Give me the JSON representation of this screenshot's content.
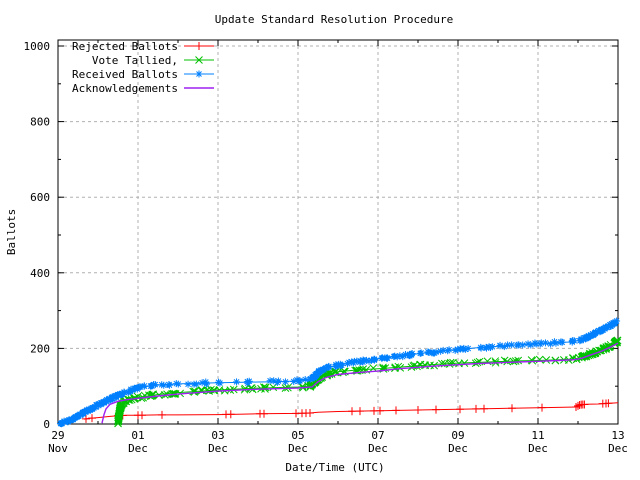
{
  "chart_data": {
    "type": "line",
    "title": "Update Standard Resolution Procedure",
    "xlabel": "Date/Time (UTC)",
    "ylabel": "Ballots",
    "x_unit": "days since 29 Nov 00:00 UTC",
    "xlim_days": [
      0,
      14
    ],
    "ylim": [
      0,
      1016
    ],
    "y_ticks": [
      0,
      200,
      400,
      600,
      800,
      1000
    ],
    "y_minor_ticks": [
      100,
      300,
      500,
      700,
      900
    ],
    "x_ticks": [
      {
        "day": 0,
        "line1": "29",
        "line2": "Nov"
      },
      {
        "day": 2,
        "line1": "01",
        "line2": "Dec"
      },
      {
        "day": 4,
        "line1": "03",
        "line2": "Dec"
      },
      {
        "day": 6,
        "line1": "05",
        "line2": "Dec"
      },
      {
        "day": 8,
        "line1": "07",
        "line2": "Dec"
      },
      {
        "day": 10,
        "line1": "09",
        "line2": "Dec"
      },
      {
        "day": 12,
        "line1": "11",
        "line2": "Dec"
      },
      {
        "day": 14,
        "line1": "13",
        "line2": "Dec"
      }
    ],
    "x_minor_days": [
      1,
      3,
      5,
      7,
      9,
      11,
      13
    ],
    "grid": {
      "on": true,
      "color": "#b0b0b0",
      "dash": "3,3"
    },
    "legend": {
      "position": "top-left-inside"
    },
    "colors": {
      "background": "#ffffff",
      "border": "#000000",
      "text": "#000000"
    },
    "series": [
      {
        "name": "Rejected Ballots",
        "color": "#ff0000",
        "marker": "plus",
        "points": [
          [
            0.65,
            13
          ],
          [
            0.8,
            15
          ],
          [
            1,
            17
          ],
          [
            1.3,
            20
          ],
          [
            1.5,
            22
          ],
          [
            1.7,
            23
          ],
          [
            2,
            23
          ],
          [
            2.5,
            24
          ],
          [
            3,
            24
          ],
          [
            4,
            25
          ],
          [
            4.5,
            26
          ],
          [
            5,
            27
          ],
          [
            6,
            28
          ],
          [
            6.3,
            29
          ],
          [
            6.5,
            31
          ],
          [
            7,
            33
          ],
          [
            7.5,
            34
          ],
          [
            8,
            35
          ],
          [
            8.5,
            36
          ],
          [
            9,
            37
          ],
          [
            9.5,
            38
          ],
          [
            10,
            39
          ],
          [
            10.5,
            40
          ],
          [
            11,
            41
          ],
          [
            11.5,
            42
          ],
          [
            12,
            43
          ],
          [
            12.5,
            44
          ],
          [
            12.95,
            45
          ],
          [
            13.05,
            51
          ],
          [
            13.2,
            52
          ],
          [
            13.5,
            53
          ],
          [
            13.8,
            55
          ],
          [
            14,
            56
          ]
        ],
        "marker_days": [
          0.7,
          0.85,
          1.5,
          1.62,
          2.0,
          2.1,
          2.6,
          4.2,
          4.32,
          5.05,
          5.15,
          5.95,
          6.1,
          6.2,
          6.3,
          7.35,
          7.55,
          7.9,
          8.05,
          8.45,
          9.0,
          9.45,
          10.05,
          10.45,
          10.65,
          11.35,
          12.1,
          12.95,
          13.0,
          13.04,
          13.08,
          13.12,
          13.16,
          13.62,
          13.7,
          13.76
        ]
      },
      {
        "name": "Vote Tallied,",
        "color": "#00c000",
        "marker": "cross",
        "points": [
          [
            1.5,
            2
          ],
          [
            1.52,
            20
          ],
          [
            1.55,
            40
          ],
          [
            1.6,
            55
          ],
          [
            1.7,
            62
          ],
          [
            1.8,
            66
          ],
          [
            2,
            70
          ],
          [
            2.5,
            78
          ],
          [
            3,
            83
          ],
          [
            4,
            90
          ],
          [
            5,
            95
          ],
          [
            6,
            98
          ],
          [
            6.3,
            100
          ],
          [
            6.45,
            115
          ],
          [
            6.6,
            126
          ],
          [
            6.8,
            133
          ],
          [
            7,
            138
          ],
          [
            7.5,
            143
          ],
          [
            8,
            146
          ],
          [
            8.5,
            150
          ],
          [
            9,
            154
          ],
          [
            9.5,
            158
          ],
          [
            10,
            161
          ],
          [
            10.5,
            163
          ],
          [
            11,
            165
          ],
          [
            11.5,
            167
          ],
          [
            12,
            168
          ],
          [
            12.5,
            170
          ],
          [
            12.9,
            172
          ],
          [
            13.1,
            176
          ],
          [
            13.3,
            184
          ],
          [
            13.6,
            196
          ],
          [
            13.8,
            206
          ],
          [
            14,
            220
          ]
        ]
      },
      {
        "name": "Received Ballots",
        "color": "#0080ff",
        "marker": "star",
        "points": [
          [
            0,
            1
          ],
          [
            0.1,
            3
          ],
          [
            0.25,
            8
          ],
          [
            0.4,
            15
          ],
          [
            0.55,
            24
          ],
          [
            0.7,
            33
          ],
          [
            0.85,
            42
          ],
          [
            1,
            50
          ],
          [
            1.15,
            58
          ],
          [
            1.3,
            66
          ],
          [
            1.45,
            73
          ],
          [
            1.6,
            80
          ],
          [
            1.75,
            86
          ],
          [
            1.9,
            92
          ],
          [
            2,
            95
          ],
          [
            2.2,
            99
          ],
          [
            2.4,
            102
          ],
          [
            2.7,
            104
          ],
          [
            3,
            106
          ],
          [
            3.5,
            108
          ],
          [
            4,
            109
          ],
          [
            4.5,
            110
          ],
          [
            5,
            111
          ],
          [
            5.5,
            112
          ],
          [
            6,
            114
          ],
          [
            6.3,
            116
          ],
          [
            6.4,
            124
          ],
          [
            6.5,
            136
          ],
          [
            6.6,
            144
          ],
          [
            6.75,
            150
          ],
          [
            7,
            156
          ],
          [
            7.3,
            161
          ],
          [
            7.6,
            166
          ],
          [
            8,
            173
          ],
          [
            8.4,
            178
          ],
          [
            8.8,
            183
          ],
          [
            9.2,
            188
          ],
          [
            9.6,
            193
          ],
          [
            10,
            197
          ],
          [
            10.4,
            201
          ],
          [
            10.8,
            204
          ],
          [
            11.2,
            207
          ],
          [
            11.6,
            210
          ],
          [
            12,
            213
          ],
          [
            12.4,
            215
          ],
          [
            12.8,
            217
          ],
          [
            13,
            220
          ],
          [
            13.2,
            228
          ],
          [
            13.4,
            238
          ],
          [
            13.6,
            250
          ],
          [
            13.8,
            260
          ],
          [
            14,
            273
          ]
        ]
      },
      {
        "name": "Acknowledgements",
        "color": "#a020f0",
        "marker": "none",
        "points": [
          [
            1.1,
            2
          ],
          [
            1.15,
            25
          ],
          [
            1.2,
            40
          ],
          [
            1.3,
            52
          ],
          [
            1.5,
            60
          ],
          [
            1.7,
            64
          ],
          [
            2,
            68
          ],
          [
            2.5,
            74
          ],
          [
            3,
            79
          ],
          [
            4,
            87
          ],
          [
            5,
            92
          ],
          [
            6,
            95
          ],
          [
            6.35,
            98
          ],
          [
            6.5,
            112
          ],
          [
            6.7,
            123
          ],
          [
            7,
            131
          ],
          [
            7.5,
            136
          ],
          [
            8,
            140
          ],
          [
            8.5,
            146
          ],
          [
            9,
            150
          ],
          [
            9.5,
            154
          ],
          [
            10,
            157
          ],
          [
            10.5,
            160
          ],
          [
            11,
            162
          ],
          [
            11.5,
            164
          ],
          [
            12,
            166
          ],
          [
            12.5,
            168
          ],
          [
            12.9,
            170
          ],
          [
            13.1,
            174
          ],
          [
            13.3,
            182
          ],
          [
            13.6,
            193
          ],
          [
            13.8,
            203
          ],
          [
            14,
            214
          ]
        ]
      }
    ]
  }
}
